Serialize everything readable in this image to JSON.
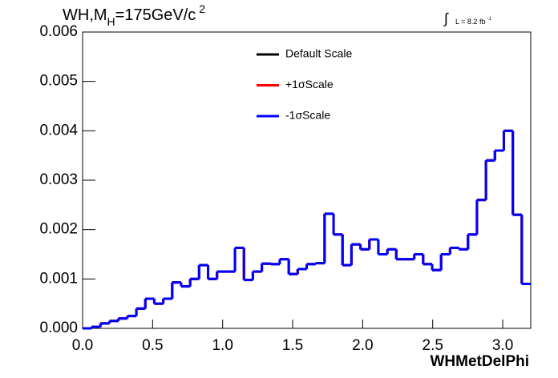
{
  "chart_data": {
    "type": "histogram",
    "title": {
      "main": "WH,M",
      "sub": "H",
      "rest": "=175GeV/c",
      "sup": "2"
    },
    "lumi": {
      "symbol": "∫",
      "text": "L = 8.2 fb",
      "sup": "-1"
    },
    "x_label": "WHMetDelPhi",
    "bins": [
      0,
      0.064,
      0.128,
      0.192,
      0.256,
      0.32,
      0.384,
      0.448,
      0.512,
      0.576,
      0.64,
      0.704,
      0.768,
      0.832,
      0.896,
      0.96,
      1.024,
      1.088,
      1.152,
      1.216,
      1.28,
      1.344,
      1.408,
      1.472,
      1.536,
      1.6,
      1.664,
      1.728,
      1.792,
      1.856,
      1.92,
      1.984,
      2.048,
      2.112,
      2.176,
      2.24,
      2.304,
      2.368,
      2.432,
      2.496,
      2.56,
      2.624,
      2.688,
      2.752,
      2.816,
      2.88,
      2.944,
      3.008,
      3.072,
      3.136,
      3.2
    ],
    "series": [
      {
        "name": "Default Scale",
        "color": "#000000",
        "values": [
          0,
          3e-05,
          0.0001,
          0.00015,
          0.0002,
          0.00025,
          0.0004,
          0.0006,
          0.0005,
          0.0006,
          0.00093,
          0.00085,
          0.001,
          0.00128,
          0.001,
          0.00115,
          0.00115,
          0.00163,
          0.00098,
          0.00115,
          0.00131,
          0.0013,
          0.0014,
          0.0011,
          0.0012,
          0.0013,
          0.00132,
          0.00232,
          0.0019,
          0.00128,
          0.0017,
          0.0016,
          0.0018,
          0.0015,
          0.0016,
          0.0014,
          0.0014,
          0.0015,
          0.0013,
          0.00118,
          0.0015,
          0.00163,
          0.0016,
          0.0019,
          0.0026,
          0.0034,
          0.0036,
          0.004,
          0.0023,
          0.0009
        ]
      },
      {
        "name": "+1σScale",
        "color": "#ff0000",
        "values": [
          0,
          3e-05,
          0.0001,
          0.00015,
          0.0002,
          0.00025,
          0.0004,
          0.0006,
          0.0005,
          0.0006,
          0.00093,
          0.00085,
          0.001,
          0.00128,
          0.001,
          0.00115,
          0.00115,
          0.00163,
          0.00098,
          0.00115,
          0.00131,
          0.0013,
          0.0014,
          0.0011,
          0.0012,
          0.0013,
          0.00132,
          0.00232,
          0.0019,
          0.00128,
          0.0017,
          0.0016,
          0.0018,
          0.0015,
          0.0016,
          0.0014,
          0.0014,
          0.0015,
          0.0013,
          0.00118,
          0.0015,
          0.00163,
          0.0016,
          0.0019,
          0.0026,
          0.0034,
          0.0036,
          0.004,
          0.0023,
          0.0009
        ]
      },
      {
        "name": "-1σScale",
        "color": "#0000ff",
        "values": [
          0,
          3e-05,
          0.0001,
          0.00015,
          0.0002,
          0.00025,
          0.0004,
          0.0006,
          0.0005,
          0.0006,
          0.00093,
          0.00085,
          0.001,
          0.00128,
          0.001,
          0.00115,
          0.00115,
          0.00163,
          0.00098,
          0.00115,
          0.00131,
          0.0013,
          0.0014,
          0.0011,
          0.0012,
          0.0013,
          0.00132,
          0.00232,
          0.0019,
          0.00128,
          0.0017,
          0.0016,
          0.0018,
          0.0015,
          0.0016,
          0.0014,
          0.0014,
          0.0015,
          0.0013,
          0.00118,
          0.0015,
          0.00163,
          0.0016,
          0.0019,
          0.0026,
          0.0034,
          0.0036,
          0.004,
          0.0023,
          0.0009
        ]
      }
    ],
    "xlim": [
      0,
      3.2
    ],
    "xticks": [
      {
        "value": 0,
        "label": "0.0"
      },
      {
        "value": 0.5,
        "label": "0.5"
      },
      {
        "value": 1,
        "label": "1.0"
      },
      {
        "value": 1.5,
        "label": "1.5"
      },
      {
        "value": 2,
        "label": "2.0"
      },
      {
        "value": 2.5,
        "label": "2.5"
      },
      {
        "value": 3,
        "label": "3.0"
      }
    ],
    "ylim": [
      0,
      0.006
    ],
    "yticks": [
      {
        "value": 0,
        "label": "0.000"
      },
      {
        "value": 0.001,
        "label": "0.001"
      },
      {
        "value": 0.002,
        "label": "0.002"
      },
      {
        "value": 0.003,
        "label": "0.003"
      },
      {
        "value": 0.004,
        "label": "0.004"
      },
      {
        "value": 0.005,
        "label": "0.005"
      },
      {
        "value": 0.006,
        "label": "0.006"
      }
    ]
  }
}
